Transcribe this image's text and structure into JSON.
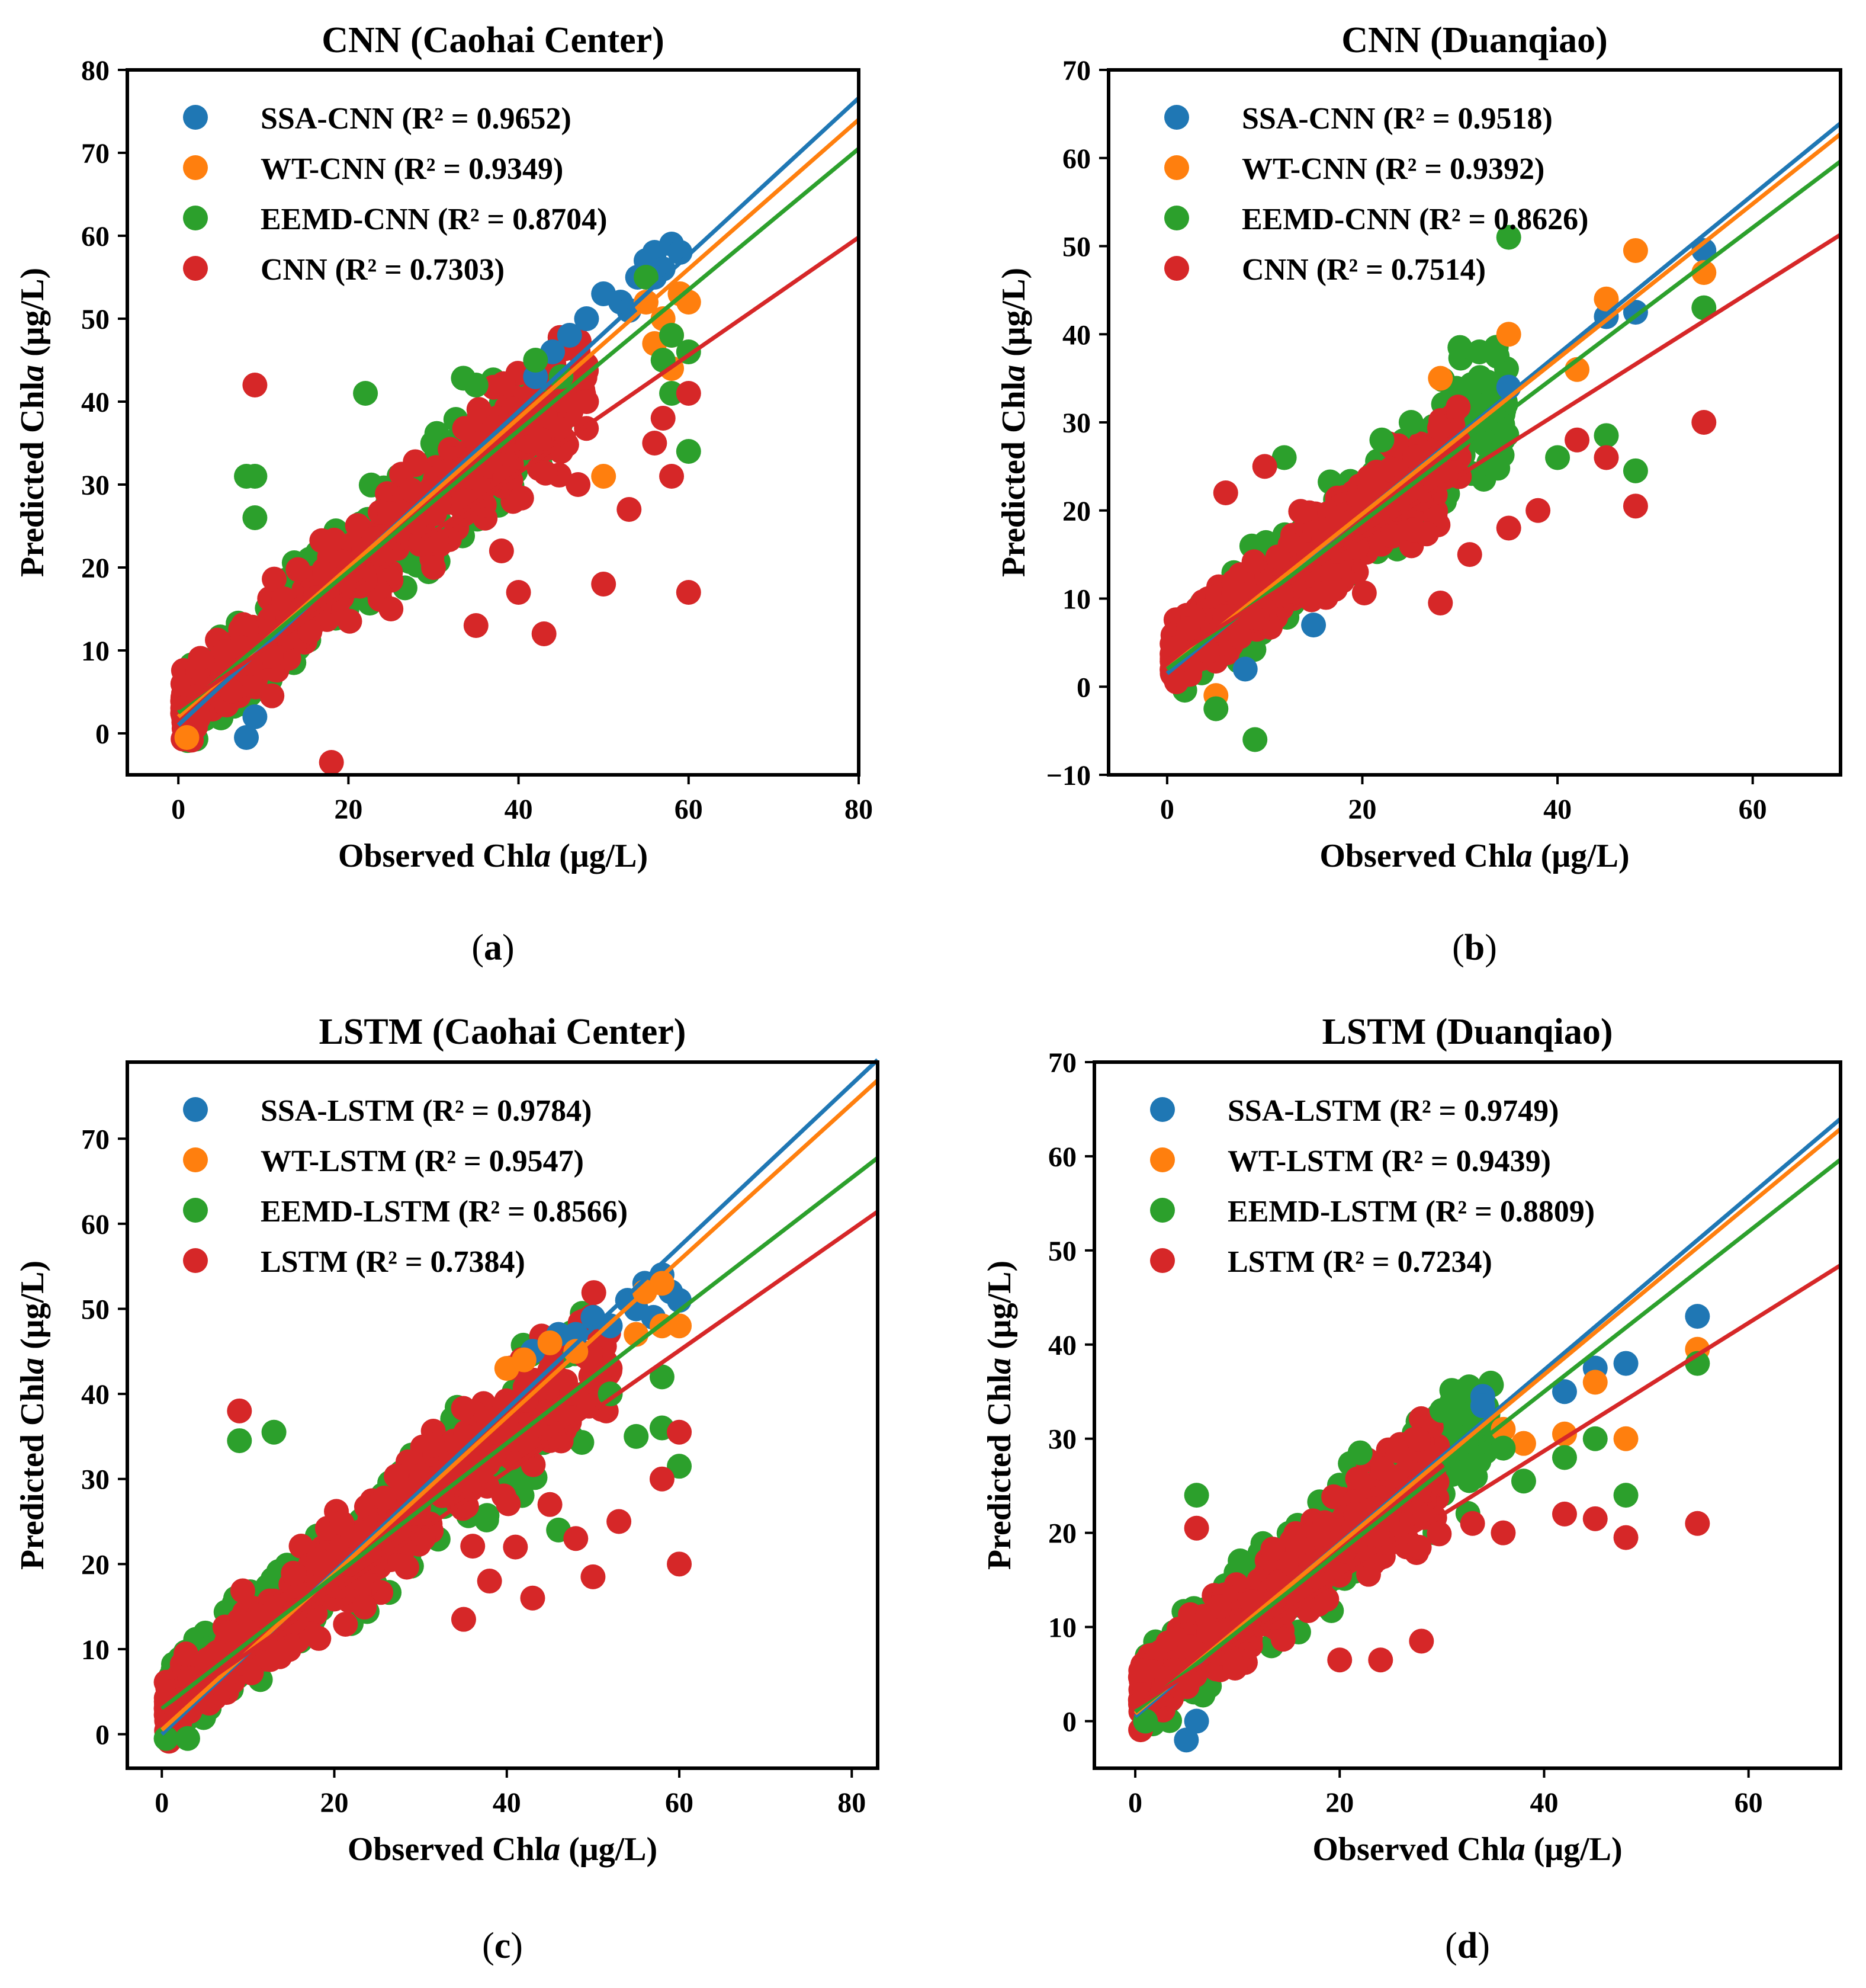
{
  "chart_data": [
    {
      "type": "scatter",
      "panel": "(a)",
      "title": "CNN (Caohai Center)",
      "xlabel": "Observed Chl a (μg/L)",
      "ylabel": "Predicted Chl a (μg/L)",
      "xlim": [
        -6,
        80
      ],
      "ylim": [
        -5,
        80
      ],
      "xticks": [
        0,
        20,
        40,
        60,
        80
      ],
      "yticks": [
        0,
        10,
        20,
        30,
        40,
        50,
        60,
        70,
        80
      ],
      "series": [
        {
          "name": "SSA-CNN",
          "label": "SSA-CNN (R² = 0.9652)",
          "color": "#1f77b4",
          "fit": [
            1.0,
            0.945
          ],
          "points": [
            [
              8,
              -0.5
            ],
            [
              9,
              2
            ],
            [
              42,
              43
            ],
            [
              44,
              46
            ],
            [
              46,
              48
            ],
            [
              48,
              50
            ],
            [
              50,
              53
            ],
            [
              52,
              52
            ],
            [
              54,
              55
            ],
            [
              55,
              57
            ],
            [
              56,
              58
            ],
            [
              57,
              56
            ],
            [
              58,
              59
            ],
            [
              59,
              58
            ],
            [
              56,
              55
            ],
            [
              53,
              51
            ]
          ]
        },
        {
          "name": "WT-CNN",
          "label": "WT-CNN (R² = 0.9349)",
          "color": "#ff7f0e",
          "fit": [
            2.0,
            0.9
          ],
          "points": [
            [
              1,
              -0.5
            ],
            [
              50,
              31
            ],
            [
              55,
              52
            ],
            [
              57,
              50
            ],
            [
              58,
              48
            ],
            [
              59,
              53
            ],
            [
              60,
              52
            ],
            [
              56,
              47
            ],
            [
              58,
              44
            ]
          ]
        },
        {
          "name": "EEMD-CNN",
          "label": "EEMD-CNN (R² = 0.8704)",
          "color": "#2ca02c",
          "fit": [
            2.5,
            0.85
          ],
          "points": [
            [
              8,
              31
            ],
            [
              9,
              31
            ],
            [
              9,
              26
            ],
            [
              22,
              41
            ],
            [
              35,
              42
            ],
            [
              42,
              45
            ],
            [
              45,
              43
            ],
            [
              55,
              55
            ],
            [
              57,
              45
            ],
            [
              58,
              41
            ],
            [
              60,
              34
            ],
            [
              60,
              46
            ],
            [
              58,
              48
            ]
          ]
        },
        {
          "name": "CNN",
          "label": "CNN (R² = 0.7303)",
          "color": "#d62728",
          "fit": [
            3.0,
            0.71
          ],
          "points": [
            [
              9,
              42
            ],
            [
              18,
              -3.5
            ],
            [
              60,
              17
            ],
            [
              58,
              31
            ],
            [
              60,
              41
            ],
            [
              53,
              27
            ],
            [
              50,
              18
            ],
            [
              43,
              12
            ],
            [
              40,
              17
            ],
            [
              38,
              22
            ],
            [
              35,
              13
            ],
            [
              47,
              30
            ],
            [
              45,
              34
            ],
            [
              48,
              40
            ],
            [
              56,
              35
            ],
            [
              57,
              38
            ],
            [
              30,
              20
            ],
            [
              25,
              15
            ]
          ]
        }
      ],
      "cloud": {
        "series": "CNN",
        "color": "#d62728",
        "x_range": [
          0.5,
          48
        ],
        "center_slope": 0.85,
        "center_offset": 2.5,
        "spread": 5.5
      },
      "cloud_under": {
        "series": "EEMD-CNN",
        "color": "#2ca02c",
        "x_range": [
          1,
          45
        ],
        "center_slope": 0.87,
        "center_offset": 2.5,
        "spread": 6
      }
    },
    {
      "type": "scatter",
      "panel": "(b)",
      "title": "CNN (Duanqiao)",
      "xlabel": "Observed Chl a (μg/L)",
      "ylabel": "Predicted Chl a (μg/L)",
      "xlim": [
        -6,
        69
      ],
      "ylim": [
        -10,
        70
      ],
      "xticks": [
        0,
        20,
        40,
        60
      ],
      "yticks": [
        -10,
        0,
        10,
        20,
        30,
        40,
        50,
        60,
        70
      ],
      "series": [
        {
          "name": "SSA-CNN",
          "label": "SSA-CNN (R² = 0.9518)",
          "color": "#1f77b4",
          "fit": [
            1.5,
            0.905
          ],
          "points": [
            [
              35,
              34
            ],
            [
              45,
              42
            ],
            [
              48,
              42.5
            ],
            [
              55,
              49.5
            ],
            [
              8,
              2
            ],
            [
              15,
              7
            ]
          ]
        },
        {
          "name": "WT-CNN",
          "label": "WT-CNN (R² = 0.9392)",
          "color": "#ff7f0e",
          "fit": [
            2.0,
            0.88
          ],
          "points": [
            [
              28,
              35
            ],
            [
              35,
              40
            ],
            [
              42,
              36
            ],
            [
              45,
              44
            ],
            [
              48,
              49.5
            ],
            [
              55,
              47
            ],
            [
              5,
              -1
            ]
          ]
        },
        {
          "name": "EEMD-CNN",
          "label": "EEMD-CNN (R² = 0.8626)",
          "color": "#2ca02c",
          "fit": [
            2.0,
            0.835
          ],
          "points": [
            [
              35,
              51
            ],
            [
              9,
              -6
            ],
            [
              5,
              -2.5
            ],
            [
              32,
              38
            ],
            [
              30,
              38.5
            ],
            [
              40,
              26
            ],
            [
              45,
              28.5
            ],
            [
              48,
              24.5
            ],
            [
              55,
              43
            ],
            [
              22,
              28
            ],
            [
              25,
              30
            ],
            [
              12,
              26
            ]
          ]
        },
        {
          "name": "CNN",
          "label": "CNN (R² = 0.7514)",
          "color": "#d62728",
          "fit": [
            3.0,
            0.7
          ],
          "points": [
            [
              42,
              28
            ],
            [
              45,
              26
            ],
            [
              48,
              20.5
            ],
            [
              55,
              30
            ],
            [
              35,
              18
            ],
            [
              38,
              20
            ],
            [
              31,
              15
            ],
            [
              28,
              9.5
            ],
            [
              6,
              22
            ],
            [
              10,
              25
            ]
          ]
        }
      ],
      "cloud": {
        "series": "CNN",
        "color": "#d62728",
        "x_range": [
          0.5,
          30
        ],
        "center_slope": 0.8,
        "center_offset": 3,
        "spread": 4.5
      },
      "cloud_under": {
        "series": "EEMD-CNN",
        "color": "#2ca02c",
        "x_range": [
          1,
          35
        ],
        "center_slope": 0.85,
        "center_offset": 2.5,
        "spread": 5
      }
    },
    {
      "type": "scatter",
      "panel": "(c)",
      "title": "LSTM (Caohai Center)",
      "xlabel": "Observed Chl a (μg/L)",
      "ylabel": "Predicted Chl a (μg/L)",
      "xlim": [
        -4,
        83
      ],
      "ylim": [
        -4,
        79
      ],
      "xticks": [
        0,
        20,
        40,
        60,
        80
      ],
      "yticks": [
        0,
        10,
        20,
        30,
        40,
        50,
        60,
        70
      ],
      "series": [
        {
          "name": "SSA-LSTM",
          "label": "SSA-LSTM (R² = 0.9784)",
          "color": "#1f77b4",
          "fit": [
            0.0,
            0.955
          ],
          "points": [
            [
              43,
              45
            ],
            [
              46,
              47
            ],
            [
              48,
              47
            ],
            [
              50,
              49
            ],
            [
              52,
              48
            ],
            [
              54,
              51
            ],
            [
              56,
              53
            ],
            [
              58,
              54
            ],
            [
              59,
              52
            ],
            [
              60,
              51
            ],
            [
              55,
              50
            ],
            [
              57,
              49
            ]
          ]
        },
        {
          "name": "WT-LSTM",
          "label": "WT-LSTM (R² = 0.9547)",
          "color": "#ff7f0e",
          "fit": [
            0.5,
            0.92
          ],
          "points": [
            [
              40,
              43
            ],
            [
              42,
              44
            ],
            [
              45,
              46
            ],
            [
              48,
              45
            ],
            [
              55,
              47
            ],
            [
              58,
              48
            ],
            [
              60,
              48
            ],
            [
              56,
              52
            ],
            [
              58,
              53
            ]
          ]
        },
        {
          "name": "EEMD-LSTM",
          "label": "EEMD-LSTM (R² = 0.8566)",
          "color": "#2ca02c",
          "fit": [
            3.0,
            0.78
          ],
          "points": [
            [
              9,
              34.5
            ],
            [
              13,
              35.5
            ],
            [
              0.5,
              -0.5
            ],
            [
              3,
              -0.5
            ],
            [
              46,
              24
            ],
            [
              55,
              35
            ],
            [
              58,
              36
            ],
            [
              60,
              31.5
            ],
            [
              58,
              42
            ],
            [
              52,
              40
            ]
          ]
        },
        {
          "name": "LSTM",
          "label": "LSTM (R² = 0.7384)",
          "color": "#d62728",
          "fit": [
            2.5,
            0.71
          ],
          "points": [
            [
              9,
              38
            ],
            [
              60,
              20
            ],
            [
              43,
              16
            ],
            [
              50,
              18.5
            ],
            [
              53,
              25
            ],
            [
              58,
              30
            ],
            [
              60,
              35.5
            ],
            [
              48,
              23
            ],
            [
              45,
              27
            ],
            [
              35,
              13.5
            ],
            [
              38,
              18
            ],
            [
              41,
              22
            ]
          ]
        }
      ],
      "cloud": {
        "series": "LSTM",
        "color": "#d62728",
        "x_range": [
          0.5,
          52
        ],
        "center_slope": 0.82,
        "center_offset": 2.5,
        "spread": 5.5
      },
      "cloud_under": {
        "series": "EEMD-LSTM",
        "color": "#2ca02c",
        "x_range": [
          1,
          50
        ],
        "center_slope": 0.8,
        "center_offset": 3,
        "spread": 6
      }
    },
    {
      "type": "scatter",
      "panel": "(d)",
      "title": "LSTM (Duanqiao)",
      "xlabel": "Observed Chl a (μg/L)",
      "ylabel": "Predicted Chl a (μg/L)",
      "xlim": [
        -4,
        69
      ],
      "ylim": [
        -5,
        70
      ],
      "xticks": [
        0,
        20,
        40,
        60
      ],
      "yticks": [
        0,
        10,
        20,
        30,
        40,
        50,
        60,
        70
      ],
      "series": [
        {
          "name": "SSA-LSTM",
          "label": "SSA-LSTM (R² = 0.9749)",
          "color": "#1f77b4",
          "fit": [
            0.5,
            0.92
          ],
          "points": [
            [
              5,
              -2
            ],
            [
              6,
              0
            ],
            [
              34,
              34.5
            ],
            [
              34,
              33.5
            ],
            [
              42,
              35
            ],
            [
              45,
              37.5
            ],
            [
              48,
              38
            ],
            [
              55,
              43
            ]
          ]
        },
        {
          "name": "WT-LSTM",
          "label": "WT-LSTM (R² = 0.9439)",
          "color": "#ff7f0e",
          "fit": [
            0.8,
            0.9
          ],
          "points": [
            [
              36,
              31
            ],
            [
              38,
              29.5
            ],
            [
              42,
              30.5
            ],
            [
              45,
              36
            ],
            [
              48,
              30
            ],
            [
              55,
              39.5
            ]
          ]
        },
        {
          "name": "EEMD-LSTM",
          "label": "EEMD-LSTM (R² = 0.8809)",
          "color": "#2ca02c",
          "fit": [
            1.0,
            0.85
          ],
          "points": [
            [
              30,
              33
            ],
            [
              31,
              34
            ],
            [
              36,
              29
            ],
            [
              38,
              25.5
            ],
            [
              42,
              28
            ],
            [
              45,
              30
            ],
            [
              48,
              24
            ],
            [
              55,
              38
            ],
            [
              6,
              24
            ],
            [
              1,
              0
            ],
            [
              22,
              28.5
            ]
          ]
        },
        {
          "name": "LSTM",
          "label": "LSTM (R² = 0.7234)",
          "color": "#d62728",
          "fit": [
            1.5,
            0.68
          ],
          "points": [
            [
              6,
              20.5
            ],
            [
              42,
              22
            ],
            [
              45,
              21.5
            ],
            [
              48,
              19.5
            ],
            [
              55,
              21
            ],
            [
              28,
              8.5
            ],
            [
              24,
              6.5
            ],
            [
              20,
              6.5
            ],
            [
              36,
              20
            ],
            [
              33,
              21
            ]
          ]
        }
      ],
      "cloud": {
        "series": "LSTM",
        "color": "#d62728",
        "x_range": [
          0.5,
          30
        ],
        "center_slope": 0.82,
        "center_offset": 2.5,
        "spread": 4.5
      },
      "cloud_under": {
        "series": "EEMD-LSTM",
        "color": "#2ca02c",
        "x_range": [
          1,
          35
        ],
        "center_slope": 0.85,
        "center_offset": 2.5,
        "spread": 5
      }
    }
  ]
}
